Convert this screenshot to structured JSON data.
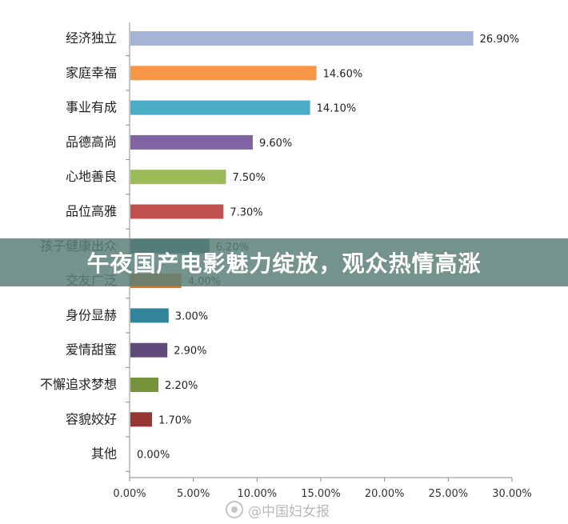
{
  "chart_data": {
    "type": "bar",
    "orientation": "horizontal",
    "categories": [
      "经济独立",
      "家庭幸福",
      "事业有成",
      "品德高尚",
      "心地善良",
      "品位高雅",
      "孩子健康出众",
      "交友广泛",
      "身份显赫",
      "爱情甜蜜",
      "不懈追求梦想",
      "容貌姣好",
      "其他"
    ],
    "values": [
      26.9,
      14.6,
      14.1,
      9.6,
      7.5,
      7.3,
      6.2,
      4.0,
      3.0,
      2.9,
      2.2,
      1.7,
      0.0
    ],
    "data_labels": [
      "26.90%",
      "14.60%",
      "14.10%",
      "9.60%",
      "7.50%",
      "7.30%",
      "6.20%",
      "4.00%",
      "3.00%",
      "2.90%",
      "2.20%",
      "1.70%",
      "0.00%"
    ],
    "colors": [
      "#a5b3d6",
      "#f79646",
      "#4bacc6",
      "#8064a2",
      "#9bbb59",
      "#c0504d",
      "#2c6a85",
      "#d67a2a",
      "#31869b",
      "#604a7b",
      "#77933c",
      "#953735",
      "#4f81bd"
    ],
    "xlim": [
      0,
      30
    ],
    "xticks": [
      "0.00%",
      "5.00%",
      "10.00%",
      "15.00%",
      "20.00%",
      "25.00%",
      "30.00%"
    ],
    "grid": false,
    "legend": "none"
  },
  "banner": {
    "text": "午夜国产电影魅力绽放，观众热情高涨"
  },
  "watermark": {
    "text": "@中国妇女报"
  }
}
